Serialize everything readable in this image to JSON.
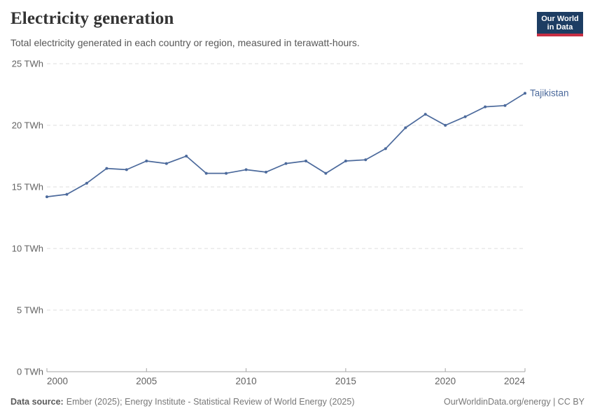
{
  "header": {
    "title": "Electricity generation",
    "subtitle": "Total electricity generated in each country or region, measured in terawatt-hours.",
    "logo": {
      "line1": "Our World",
      "line2": "in Data",
      "bg_color": "#1d3d63",
      "accent_color": "#c72e43"
    }
  },
  "chart_data": {
    "type": "line",
    "title": "Electricity generation",
    "subtitle": "Total electricity generated in each country or region, measured in terawatt-hours.",
    "unit": "TWh",
    "x": [
      2000,
      2001,
      2002,
      2003,
      2004,
      2005,
      2006,
      2007,
      2008,
      2009,
      2010,
      2011,
      2012,
      2013,
      2014,
      2015,
      2016,
      2017,
      2018,
      2019,
      2020,
      2021,
      2022,
      2023,
      2024
    ],
    "series": [
      {
        "name": "Tajikistan",
        "color": "#4c6a9c",
        "values": [
          14.2,
          14.4,
          15.3,
          16.5,
          16.4,
          17.1,
          16.9,
          17.5,
          16.1,
          16.1,
          16.4,
          16.2,
          16.9,
          17.1,
          16.1,
          17.1,
          17.2,
          18.1,
          19.8,
          20.9,
          20.0,
          20.7,
          21.5,
          21.6,
          22.6
        ]
      }
    ],
    "xlim": [
      2000,
      2024
    ],
    "ylim": [
      0,
      25
    ],
    "x_ticks": [
      2000,
      2005,
      2010,
      2015,
      2020,
      2024
    ],
    "x_tick_labels": [
      "2000",
      "2005",
      "2010",
      "2015",
      "2020",
      "2024"
    ],
    "y_ticks": [
      0,
      5,
      10,
      15,
      20,
      25
    ],
    "y_tick_labels": [
      "0 TWh",
      "5 TWh",
      "10 TWh",
      "15 TWh",
      "20 TWh",
      "25 TWh"
    ],
    "grid": "horizontal-dashed",
    "legend_position": "line-end-label",
    "grid_color": "#dddddd",
    "axis_color": "#a5a5a5",
    "tick_label_color": "#636363"
  },
  "footer": {
    "source_label": "Data source:",
    "source_text": "Ember (2025); Energy Institute - Statistical Review of World Energy (2025)",
    "rights": "OurWorldinData.org/energy | CC BY"
  }
}
